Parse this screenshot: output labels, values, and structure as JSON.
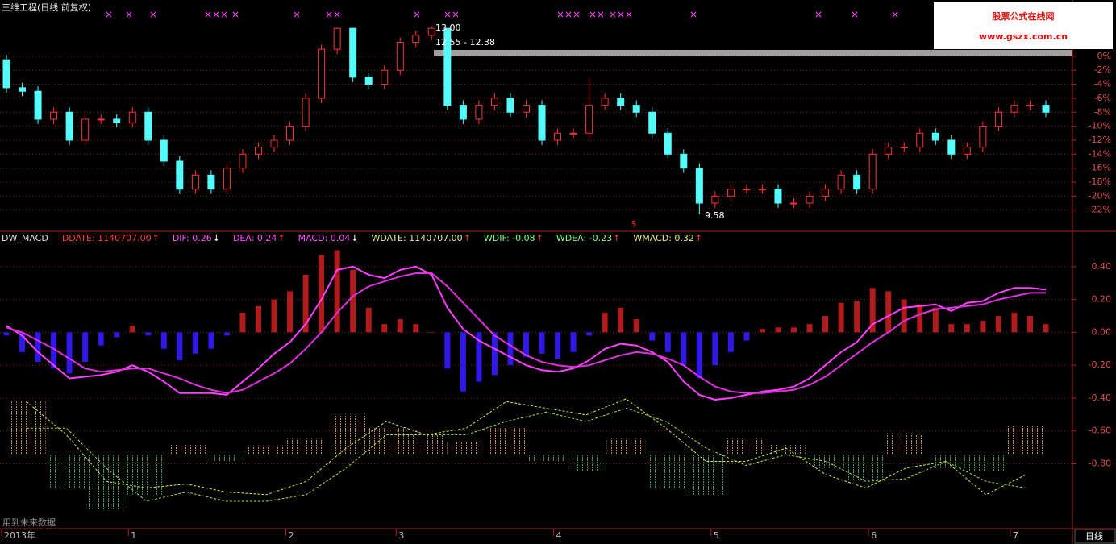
{
  "header": {
    "title": "三维工程(日线 前复权)",
    "watermark_title": "股票公式在线网",
    "watermark_url": "www.gszx.com.cn",
    "notice": "用到未来数据",
    "period": "日线"
  },
  "chart_data": [
    {
      "type": "candlestick",
      "categories": [
        "2013年",
        null,
        null,
        null,
        null,
        null,
        null,
        null,
        "1",
        null,
        null,
        null,
        null,
        null,
        null,
        null,
        null,
        null,
        "2",
        null,
        null,
        null,
        null,
        null,
        null,
        "3",
        null,
        null,
        null,
        null,
        null,
        null,
        null,
        null,
        null,
        "4",
        null,
        null,
        null,
        null,
        null,
        null,
        null,
        null,
        null,
        "5",
        null,
        null,
        null,
        null,
        null,
        null,
        null,
        null,
        null,
        "6",
        null,
        null,
        null,
        null,
        null,
        null,
        null,
        null,
        "7",
        null,
        null
      ],
      "open": [
        -0.5,
        -4.5,
        -5,
        -9,
        -8,
        -12,
        -9,
        -9,
        -9.5,
        -8,
        -12,
        -15,
        -19,
        -17,
        -19,
        -16,
        -14,
        -13,
        -12,
        -10,
        -6,
        1,
        4,
        -3,
        -4,
        -2,
        2,
        3,
        4,
        -7,
        -9,
        -7,
        -6,
        -8,
        -7,
        -12,
        -11,
        -11,
        -7,
        -6,
        -7,
        -8,
        -11,
        -14,
        -16,
        -21,
        -20,
        -19,
        -19,
        -19,
        -21,
        -21,
        -20,
        -19,
        -17,
        -19,
        -14,
        -13,
        -13,
        -11,
        -12,
        -14,
        -13,
        -10,
        -8,
        -7,
        -7
      ],
      "high": [
        0.2,
        -3.8,
        -4.3,
        -7.3,
        -7.3,
        -8.3,
        -8.3,
        -8.3,
        -7.3,
        -7.3,
        -11.3,
        -14.3,
        -16.3,
        -16.3,
        -15.3,
        -13.3,
        -12.3,
        -11.3,
        -9.3,
        -5.3,
        1.7,
        4.1,
        4.0,
        -2.3,
        -1.3,
        2.7,
        3.7,
        4.3,
        4.0,
        -6.3,
        -6.3,
        -5.3,
        -5.3,
        -6.3,
        -6.3,
        -10.3,
        -10.3,
        -3,
        -5.3,
        -5.3,
        -6.3,
        -7.3,
        -10.3,
        -13.3,
        -15.3,
        -19.3,
        -18.3,
        -18.3,
        -18.3,
        -18.3,
        -20.3,
        -19.3,
        -18.3,
        -16.3,
        -16.3,
        -13.3,
        -12.3,
        -12.3,
        -10.3,
        -10.3,
        -11.3,
        -12.3,
        -9.3,
        -7.3,
        -6.3,
        -6.3,
        -6.3
      ],
      "low": [
        -5.2,
        -5.7,
        -9.7,
        -9.7,
        -12.7,
        -12.7,
        -9.7,
        -10.2,
        -10.2,
        -12.7,
        -15.7,
        -19.7,
        -19.7,
        -19.7,
        -19.7,
        -16.7,
        -14.7,
        -13.7,
        -12.7,
        -10.7,
        -6.7,
        0.3,
        -3.7,
        -4.7,
        -4.7,
        -2.7,
        1.3,
        2.3,
        -7.7,
        -9.7,
        -9.7,
        -7.7,
        -8.7,
        -8.7,
        -12.7,
        -12.7,
        -11.7,
        -11.7,
        -7.7,
        -7.7,
        -8.7,
        -11.7,
        -14.7,
        -16.7,
        -22.6,
        -21.7,
        -20.7,
        -19.7,
        -19.7,
        -21.7,
        -21.7,
        -21.7,
        -20.7,
        -19.7,
        -19.7,
        -19.7,
        -14.7,
        -13.7,
        -13.7,
        -12.7,
        -14.7,
        -14.7,
        -13.7,
        -10.7,
        -8.7,
        -7.7,
        -8.7
      ],
      "close": [
        -4.5,
        -5,
        -9,
        -8,
        -12,
        -9,
        -9,
        -9.5,
        -8,
        -12,
        -15,
        -19,
        -17,
        -19,
        -16,
        -14,
        -13,
        -12,
        -10,
        -6,
        1,
        4,
        -3,
        -4,
        -2,
        2,
        3,
        4,
        -7,
        -9,
        -7,
        -6,
        -8,
        -7,
        -12,
        -11,
        -11,
        -7,
        -6,
        -7,
        -8,
        -11,
        -14,
        -16,
        -21,
        -20,
        -19,
        -19,
        -19,
        -21,
        -21,
        -20,
        -19,
        -17,
        -19,
        -14,
        -13,
        -13,
        -11,
        -12,
        -14,
        -13,
        -10,
        -8,
        -7,
        -7,
        -8
      ],
      "up_color": "#ff3232",
      "down_color": "#54fcfc",
      "ylim": [
        -24.8,
        6.9
      ],
      "yticks": [
        {
          "value": 0,
          "label": "0%"
        },
        {
          "value": -2,
          "label": "-2%"
        },
        {
          "value": -4,
          "label": "-4%"
        },
        {
          "value": -6,
          "label": "-6%"
        },
        {
          "value": -8,
          "label": "-8%"
        },
        {
          "value": -10,
          "label": "-10%"
        },
        {
          "value": -12,
          "label": "-12%"
        },
        {
          "value": -14,
          "label": "-14%"
        },
        {
          "value": -16,
          "label": "-16%"
        },
        {
          "value": -18,
          "label": "-18%"
        },
        {
          "value": -20,
          "label": "-20%"
        },
        {
          "value": -22,
          "label": "-22%"
        }
      ],
      "grid": true,
      "annotations": [
        "13.00",
        "12.55 - 12.38",
        "9.58",
        "$"
      ]
    },
    {
      "type": "macd",
      "indicator_labels": [
        {
          "text": "DW_MACD",
          "color": "#e0e0e0"
        },
        {
          "text": "DDATE: 1140707.00",
          "arrow": "↑",
          "color": "#ff4040",
          "arrow_color": "#ff4040"
        },
        {
          "text": "DIF: 0.26",
          "arrow": "↓",
          "color": "#ff50ff",
          "arrow_color": "#ffffff"
        },
        {
          "text": "DEA: 0.24",
          "arrow": "↑",
          "color": "#ff50ff",
          "arrow_color": "#ff4040"
        },
        {
          "text": "MACD: 0.04",
          "arrow": "↓",
          "color": "#ff50ff",
          "arrow_color": "#ffffff"
        },
        {
          "text": "WDATE: 1140707.00",
          "arrow": "↑",
          "color": "#d8f090",
          "arrow_color": "#ff4040"
        },
        {
          "text": "WDIF: -0.08",
          "arrow": "↑",
          "color": "#80ff80",
          "arrow_color": "#ff4040"
        },
        {
          "text": "WDEA: -0.23",
          "arrow": "↑",
          "color": "#80ff80",
          "arrow_color": "#ff4040"
        },
        {
          "text": "WMACD: 0.32",
          "arrow": "↑",
          "color": "#f0f080",
          "arrow_color": "#ff4040"
        }
      ],
      "ylim": [
        -1.19,
        0.61
      ],
      "yticks": [
        {
          "value": 0.4,
          "label": "0.40"
        },
        {
          "value": 0.2,
          "label": "0.20"
        },
        {
          "value": 0,
          "label": "0.00"
        },
        {
          "value": -0.2,
          "label": "-0.20"
        },
        {
          "value": -0.4,
          "label": "-0.40"
        },
        {
          "value": -0.6,
          "label": "-0.60"
        },
        {
          "value": -0.8,
          "label": "-0.80"
        }
      ],
      "grid": true,
      "series": [
        {
          "kind": "bar",
          "pos_color": "#b01c1c",
          "neg_color": "#3018e8",
          "values": [
            -0.02,
            -0.12,
            -0.18,
            -0.22,
            -0.25,
            -0.18,
            -0.08,
            -0.03,
            0.04,
            -0.02,
            -0.1,
            -0.17,
            -0.13,
            -0.1,
            -0.02,
            0.12,
            0.16,
            0.2,
            0.25,
            0.35,
            0.47,
            0.5,
            0.38,
            0.15,
            0.05,
            0.08,
            0.05,
            0,
            -0.22,
            -0.36,
            -0.3,
            -0.26,
            -0.2,
            -0.15,
            -0.13,
            -0.16,
            -0.12,
            -0.02,
            0.12,
            0.15,
            0.08,
            -0.05,
            -0.12,
            -0.2,
            -0.28,
            -0.2,
            -0.12,
            -0.05,
            0.02,
            0.03,
            0.03,
            0.05,
            0.1,
            0.18,
            0.19,
            0.27,
            0.25,
            0.2,
            0.17,
            0.15,
            0.05,
            0.05,
            0.07,
            0.1,
            0.12,
            0.1,
            0.05
          ]
        },
        {
          "kind": "line",
          "color": "#ff40ff",
          "values": [
            0.04,
            -0.02,
            -0.12,
            -0.2,
            -0.28,
            -0.27,
            -0.26,
            -0.24,
            -0.2,
            -0.24,
            -0.3,
            -0.37,
            -0.37,
            -0.37,
            -0.38,
            -0.3,
            -0.22,
            -0.13,
            -0.06,
            0.05,
            0.2,
            0.38,
            0.4,
            0.35,
            0.33,
            0.38,
            0.4,
            0.35,
            0.15,
            0.02,
            -0.05,
            -0.1,
            -0.15,
            -0.2,
            -0.23,
            -0.24,
            -0.22,
            -0.17,
            -0.1,
            -0.07,
            -0.08,
            -0.12,
            -0.18,
            -0.3,
            -0.38,
            -0.41,
            -0.4,
            -0.38,
            -0.36,
            -0.35,
            -0.33,
            -0.28,
            -0.2,
            -0.12,
            -0.06,
            0.05,
            0.1,
            0.15,
            0.16,
            0.17,
            0.13,
            0.18,
            0.19,
            0.24,
            0.27,
            0.27,
            0.26
          ]
        },
        {
          "kind": "line",
          "color": "#e030e0",
          "values": [
            0.03,
            0,
            -0.05,
            -0.1,
            -0.16,
            -0.22,
            -0.24,
            -0.23,
            -0.22,
            -0.22,
            -0.25,
            -0.28,
            -0.32,
            -0.35,
            -0.37,
            -0.35,
            -0.3,
            -0.25,
            -0.19,
            -0.1,
            0,
            0.12,
            0.22,
            0.28,
            0.31,
            0.34,
            0.36,
            0.36,
            0.28,
            0.18,
            0.08,
            -0.02,
            -0.08,
            -0.14,
            -0.18,
            -0.2,
            -0.21,
            -0.2,
            -0.17,
            -0.14,
            -0.12,
            -0.13,
            -0.16,
            -0.2,
            -0.27,
            -0.33,
            -0.36,
            -0.37,
            -0.37,
            -0.36,
            -0.35,
            -0.32,
            -0.27,
            -0.2,
            -0.13,
            -0.06,
            0,
            0.07,
            0.11,
            0.14,
            0.15,
            0.16,
            0.17,
            0.2,
            0.22,
            0.24,
            0.24
          ]
        }
      ]
    },
    {
      "type": "macd",
      "ylim": [
        -0.55,
        0.45
      ],
      "grid": false,
      "series": [
        {
          "kind": "bar",
          "pos_color": "#c08848",
          "neg_color": "#3c9a70",
          "values": [
            0.4,
            -0.25,
            -0.42,
            -0.3,
            0.08,
            -0.05,
            0.07,
            0.12,
            0.3,
            0.2,
            0.15,
            0.1,
            0.2,
            -0.05,
            -0.12,
            0.12,
            -0.25,
            -0.3,
            0.12,
            0.08,
            -0.1,
            -0.2,
            0.15,
            -0.1,
            -0.12,
            0.22
          ]
        },
        {
          "kind": "line",
          "color": "#c8f050",
          "dashed": true,
          "values": [
            0.4,
            0.15,
            -0.2,
            -0.25,
            -0.22,
            -0.28,
            -0.3,
            -0.2,
            0.05,
            0.25,
            0.15,
            0.2,
            0.4,
            0.35,
            0.3,
            0.42,
            0.2,
            -0.05,
            -0.05,
            0.05,
            -0.15,
            -0.25,
            -0.1,
            -0.05,
            -0.3,
            -0.15
          ]
        },
        {
          "kind": "line",
          "color": "#a8e040",
          "dashed": true,
          "values": [
            0.2,
            0.2,
            -0.1,
            -0.35,
            -0.28,
            -0.35,
            -0.35,
            -0.3,
            -0.1,
            0.15,
            0.15,
            0.15,
            0.25,
            0.32,
            0.25,
            0.35,
            0.25,
            0.05,
            -0.08,
            0,
            -0.05,
            -0.2,
            -0.18,
            -0.05,
            -0.2,
            -0.25
          ]
        }
      ]
    }
  ]
}
